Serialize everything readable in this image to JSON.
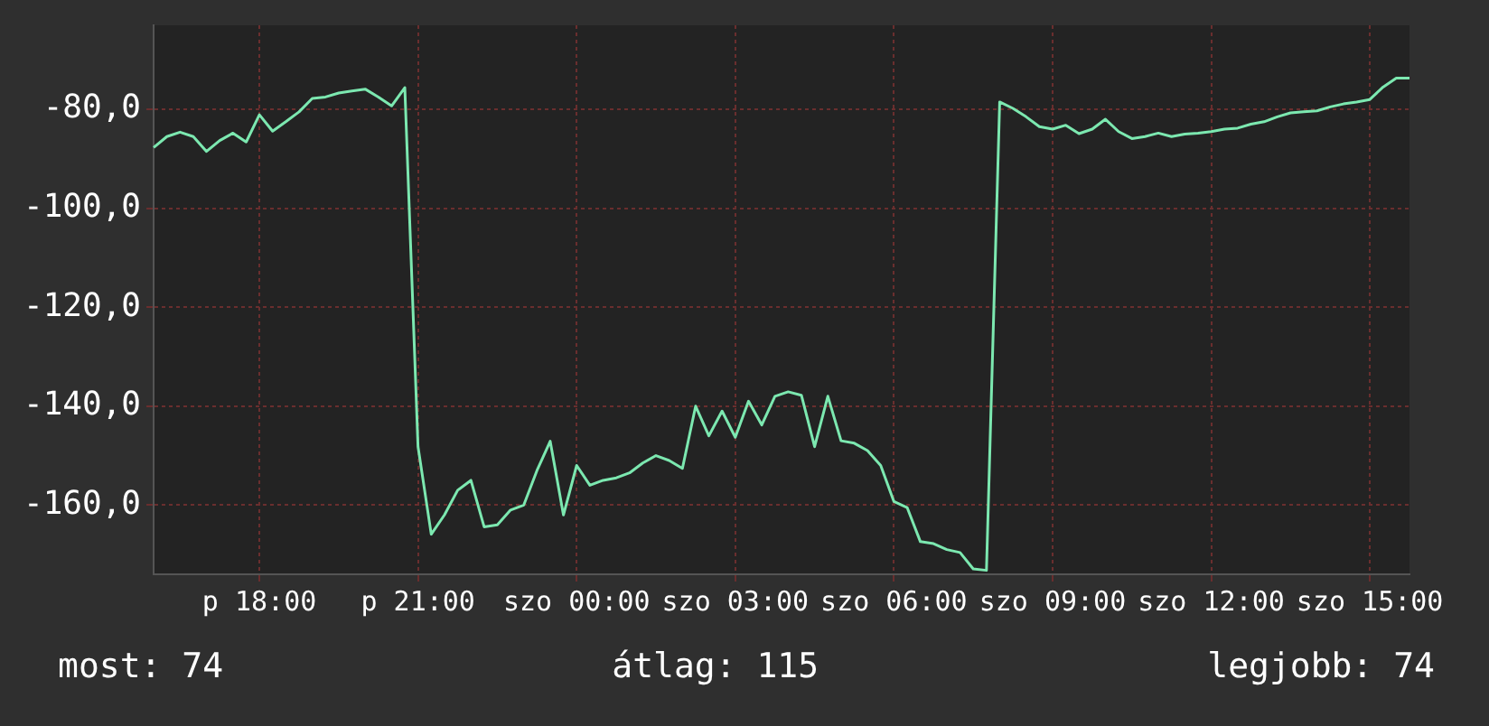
{
  "chart_data": {
    "type": "line",
    "grid": true,
    "legend": false,
    "marker": "none",
    "line_style": "solid",
    "ylim": [
      -174,
      -63
    ],
    "categories": [
      null,
      null,
      null,
      null,
      null,
      null,
      null,
      null,
      "p 18:00",
      null,
      null,
      null,
      null,
      null,
      null,
      null,
      null,
      null,
      null,
      null,
      "p 21:00",
      null,
      null,
      null,
      null,
      null,
      null,
      null,
      null,
      null,
      null,
      null,
      "szo 00:00",
      null,
      null,
      null,
      null,
      null,
      null,
      null,
      null,
      null,
      null,
      null,
      "szo 03:00",
      null,
      null,
      null,
      null,
      null,
      null,
      null,
      null,
      null,
      null,
      null,
      "szo 06:00",
      null,
      null,
      null,
      null,
      null,
      null,
      null,
      null,
      null,
      null,
      null,
      "szo 09:00",
      null,
      null,
      null,
      null,
      null,
      null,
      null,
      null,
      null,
      null,
      null,
      "szo 12:00",
      null,
      null,
      null,
      null,
      null,
      null,
      null,
      null,
      null,
      null,
      null,
      "szo 15:00",
      null,
      null,
      null
    ],
    "yticks": [
      {
        "value": -80,
        "label": "-80,0"
      },
      {
        "value": -100,
        "label": "-100,0"
      },
      {
        "value": -120,
        "label": "-120,0"
      },
      {
        "value": -140,
        "label": "-140,0"
      },
      {
        "value": -160,
        "label": "-160,0"
      }
    ],
    "annotations": [
      "most: 74",
      "átlag: 115",
      "legjobb: 74"
    ],
    "series": [
      {
        "color": "#7ce8b0",
        "values": [
          -87.7,
          -85.5,
          -84.6,
          -85.5,
          -88.5,
          -86.3,
          -84.8,
          -86.6,
          -81.1,
          -84.4,
          -82.5,
          -80.5,
          -77.8,
          -77.5,
          -76.7,
          -76.3,
          -75.9,
          -77.5,
          -79.3,
          -75.6,
          -148.2,
          -165.9,
          -162,
          -157,
          -155,
          -164.4,
          -164,
          -161,
          -160,
          -153,
          -147.1,
          -162,
          -152,
          -156,
          -155,
          -154.5,
          -153.5,
          -151.5,
          -150,
          -151,
          -152.6,
          -140,
          -146,
          -141,
          -146.3,
          -139,
          -143.8,
          -138,
          -137.1,
          -137.8,
          -148.2,
          -138,
          -147,
          -147.5,
          -149,
          -152,
          -159.3,
          -160.5,
          -167.4,
          -167.8,
          -169,
          -169.6,
          -172.9,
          -173.2,
          -78.5,
          -79.8,
          -81.5,
          -83.5,
          -84,
          -83.2,
          -84.9,
          -84,
          -82,
          -84.5,
          -85.9,
          -85.5,
          -84.8,
          -85.5,
          -85,
          -84.8,
          -84.5,
          -84,
          -83.8,
          -83,
          -82.5,
          -81.5,
          -80.7,
          -80.5,
          -80.3,
          -79.5,
          -78.9,
          -78.5,
          -78,
          -75.5,
          -73.7,
          -73.7
        ]
      }
    ]
  }
}
